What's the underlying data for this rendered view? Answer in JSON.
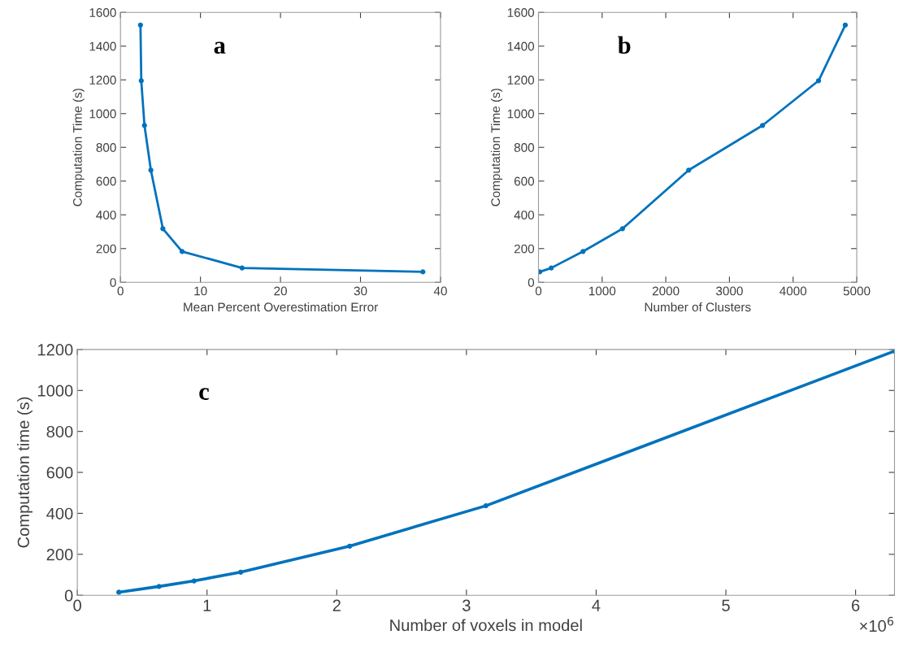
{
  "chart_data": [
    {
      "type": "line",
      "xlabel": "Mean Percent Overestimation Error",
      "ylabel": "Computation Time (s)",
      "x": [
        2.5,
        2.6,
        3.0,
        3.8,
        5.3,
        7.7,
        15.2,
        37.8
      ],
      "series": [
        {
          "color": "#0072bd",
          "values": [
            1525,
            1195,
            930,
            665,
            318,
            183,
            85,
            62
          ]
        }
      ],
      "xlim": [
        0,
        40
      ],
      "xticks": [
        0,
        10,
        20,
        30,
        40
      ],
      "ylim": [
        0,
        1600
      ],
      "yticks": [
        0,
        200,
        400,
        600,
        800,
        1000,
        1200,
        1400,
        1600
      ],
      "grid": false,
      "marker": "circle",
      "line_style": "solid",
      "annotations": [
        "a"
      ]
    },
    {
      "type": "line",
      "xlabel": "Number of Clusters",
      "ylabel": "Computation Time (s)",
      "x": [
        20,
        200,
        700,
        1320,
        2360,
        3520,
        4400,
        4820
      ],
      "series": [
        {
          "color": "#0072bd",
          "values": [
            62,
            85,
            183,
            318,
            665,
            930,
            1195,
            1525
          ]
        }
      ],
      "xlim": [
        0,
        5000
      ],
      "xticks": [
        0,
        1000,
        2000,
        3000,
        4000,
        5000
      ],
      "ylim": [
        0,
        1600
      ],
      "yticks": [
        0,
        200,
        400,
        600,
        800,
        1000,
        1200,
        1400,
        1600
      ],
      "grid": false,
      "marker": "circle",
      "line_style": "solid",
      "annotations": [
        "b"
      ]
    },
    {
      "type": "line",
      "xlabel": "Number of voxels in model",
      "ylabel": "Computation time (s)",
      "x": [
        0.32,
        0.63,
        0.9,
        1.26,
        2.1,
        3.15,
        6.3
      ],
      "series": [
        {
          "color": "#0072bd",
          "values": [
            15,
            43,
            70,
            113,
            240,
            437,
            1192
          ]
        }
      ],
      "xlim": [
        0,
        6.3
      ],
      "xticks": [
        0,
        1,
        2,
        3,
        4,
        5,
        6
      ],
      "ylim": [
        0,
        1200
      ],
      "yticks": [
        0,
        200,
        400,
        600,
        800,
        1000,
        1200
      ],
      "grid": false,
      "marker": "circle",
      "line_style": "solid",
      "annotations": [
        "c",
        "×10$^{6}$"
      ]
    }
  ]
}
